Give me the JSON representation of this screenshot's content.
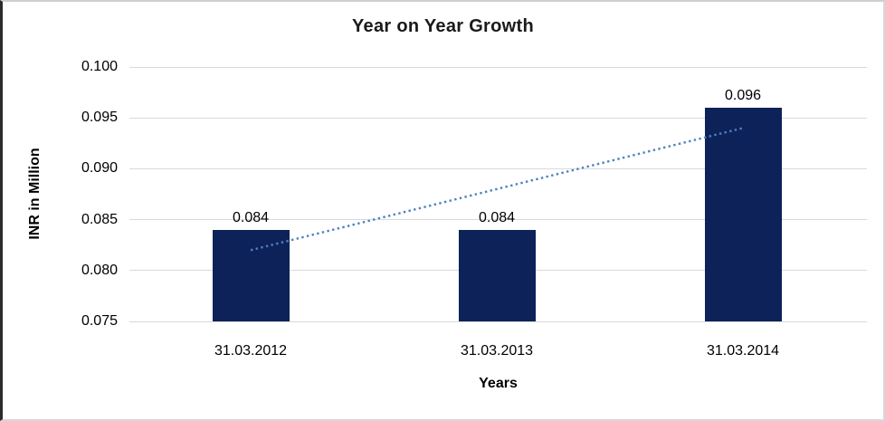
{
  "chart_data": {
    "type": "bar",
    "title": "Year on Year Growth",
    "xlabel": "Years",
    "ylabel": "INR in Million",
    "categories": [
      "31.03.2012",
      "31.03.2013",
      "31.03.2014"
    ],
    "values": [
      0.084,
      0.084,
      0.096
    ],
    "data_labels": [
      "0.084",
      "0.084",
      "0.096"
    ],
    "y_ticks": [
      "0.100",
      "0.095",
      "0.090",
      "0.085",
      "0.080",
      "0.075"
    ],
    "ylim": [
      0.075,
      0.1
    ],
    "grid": "horizontal",
    "legend": "none",
    "colors": {
      "bar": "#0c2259",
      "trendline": "#4f81bd",
      "gridline": "#d9d9d9",
      "text": "#000000"
    },
    "trendline": {
      "type": "linear",
      "style": "dotted",
      "endpoint_values": [
        0.082,
        0.094
      ]
    }
  }
}
